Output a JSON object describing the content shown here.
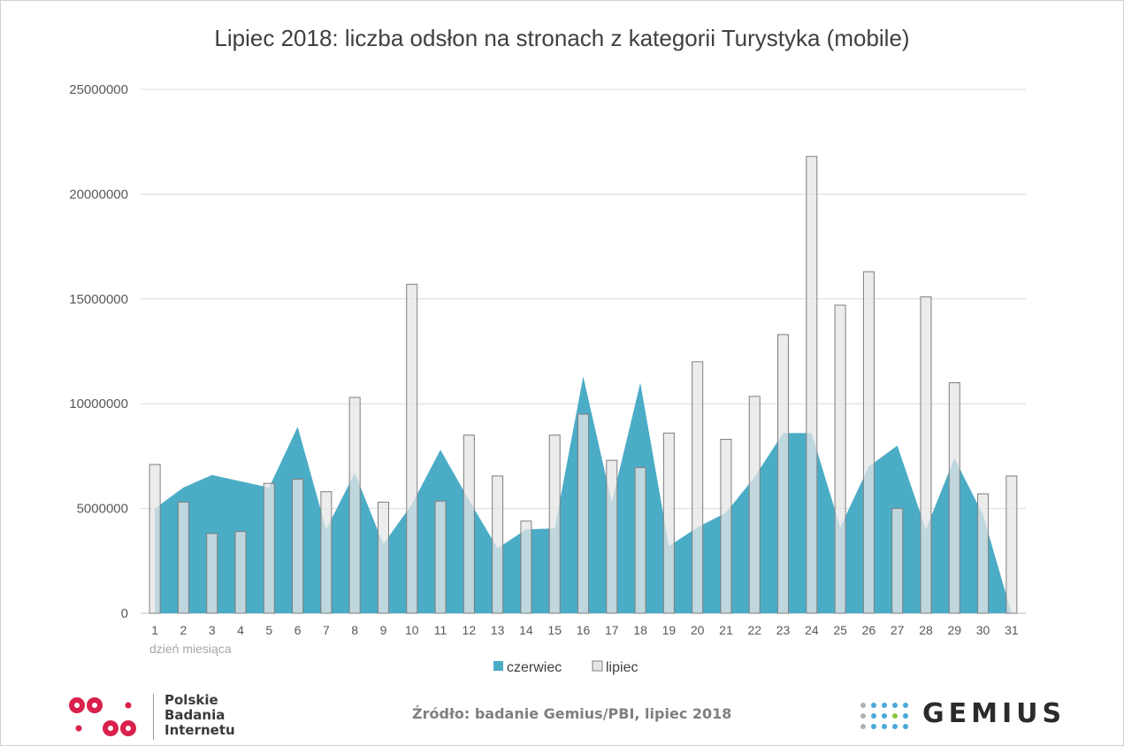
{
  "title": "Lipiec 2018: liczba odsłon na stronach z kategorii Turystyka (mobile)",
  "source": "Źródło: badanie Gemius/PBI, lipiec 2018",
  "pbi_logo": {
    "lines": [
      "Polskie",
      "Badania",
      "Internetu"
    ],
    "color": "#d9214b"
  },
  "gemius_logo": {
    "text": "GEMIUS",
    "colors": [
      "#4aa8d8",
      "#8dc63f",
      "#b0b0b0"
    ]
  },
  "chart_data": {
    "type": "bar",
    "xlabel": "dzień miesiąca",
    "ylabel": "",
    "ylim": [
      0,
      25000000
    ],
    "yticks": [
      "0",
      "5000000",
      "10000000",
      "15000000",
      "20000000",
      "25000000"
    ],
    "categories": [
      "1",
      "2",
      "3",
      "4",
      "5",
      "6",
      "7",
      "8",
      "9",
      "10",
      "11",
      "12",
      "13",
      "14",
      "15",
      "16",
      "17",
      "18",
      "19",
      "20",
      "21",
      "22",
      "23",
      "24",
      "25",
      "26",
      "27",
      "28",
      "29",
      "30",
      "31"
    ],
    "grid": true,
    "legend_position": "bottom",
    "series": [
      {
        "name": "czerwiec",
        "type": "area",
        "color": "#4bacc6",
        "values": [
          5000000,
          6000000,
          6600000,
          6300000,
          6000000,
          8900000,
          4000000,
          6700000,
          3300000,
          5200000,
          7800000,
          5400000,
          3100000,
          4000000,
          4050000,
          11300000,
          5300000,
          11000000,
          3200000,
          4100000,
          4800000,
          6500000,
          8600000,
          8600000,
          4100000,
          7000000,
          8000000,
          4000000,
          7400000,
          4700000,
          0
        ]
      },
      {
        "name": "lipiec",
        "type": "bar",
        "color": "#e6e6e6",
        "border": "#7f7f7f",
        "values": [
          7100000,
          5300000,
          3800000,
          3900000,
          6200000,
          6400000,
          5800000,
          10300000,
          5300000,
          15700000,
          5350000,
          8500000,
          6550000,
          4400000,
          8500000,
          9500000,
          7300000,
          6950000,
          8600000,
          12000000,
          8300000,
          10350000,
          13300000,
          21800000,
          14700000,
          16300000,
          5000000,
          15100000,
          11000000,
          5700000,
          6550000
        ]
      }
    ]
  }
}
